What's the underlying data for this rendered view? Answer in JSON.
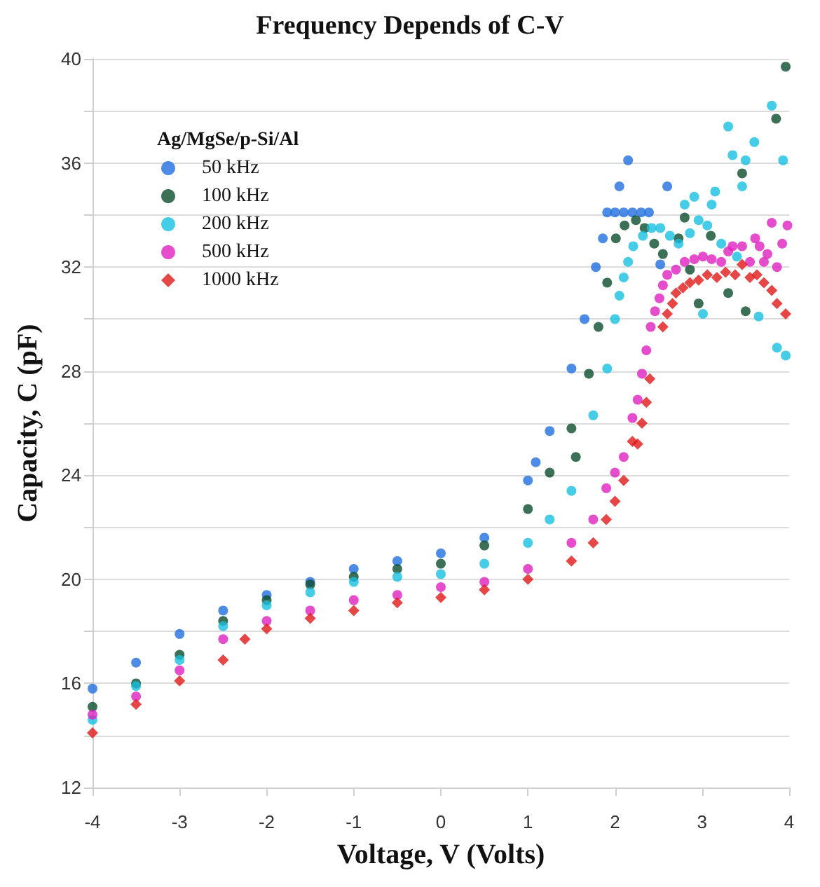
{
  "chart_data": {
    "type": "scatter",
    "title": "Frequency Depends of C-V",
    "xlabel": "Voltage, V (Volts)",
    "ylabel": "Capacity, C (pF)",
    "legend_title": "Ag/MgSe/p-Si/Al",
    "legend": "top left",
    "grid": "y",
    "marker": "circle",
    "xlim": [
      -4,
      4
    ],
    "xticks": [
      -4,
      -3,
      -2,
      -1,
      0,
      1,
      2,
      3,
      4
    ],
    "ylim": [
      12,
      40
    ],
    "yticks": [
      12,
      {
        "value": 14,
        "label": null
      },
      16,
      {
        "value": 18,
        "label": null
      },
      20,
      {
        "value": 22,
        "label": null
      },
      24,
      {
        "value": 26,
        "label": null
      },
      28,
      {
        "value": 30,
        "label": null
      },
      32,
      {
        "value": 34,
        "label": null
      },
      36,
      {
        "value": 38,
        "label": null
      },
      40
    ],
    "series": [
      {
        "name": "50 kHz",
        "color": "#1f6fe0",
        "x": [
          -4,
          -3.5,
          -3,
          -2.5,
          -2,
          -1.5,
          -1,
          -0.5,
          0,
          0.5,
          1,
          1.09,
          1.25,
          1.5,
          1.65,
          1.78,
          1.86,
          1.91,
          2.0,
          2.1,
          2.2,
          2.3,
          2.39,
          2.05,
          2.15,
          2.52,
          2.6
        ],
        "values": [
          15.8,
          16.8,
          17.9,
          18.8,
          19.4,
          19.9,
          20.4,
          20.7,
          21.0,
          21.6,
          23.8,
          24.5,
          25.7,
          28.1,
          30.0,
          32.0,
          33.1,
          34.1,
          34.1,
          34.1,
          34.1,
          34.1,
          34.1,
          35.1,
          36.1,
          32.1,
          35.1
        ]
      },
      {
        "name": "100 kHz",
        "color": "#0b4d2e",
        "x": [
          -4,
          -3.5,
          -3,
          -2.5,
          -2,
          -1.5,
          -1,
          -0.5,
          0,
          0.5,
          1,
          1.25,
          1.5,
          1.55,
          1.7,
          1.81,
          1.91,
          2.01,
          2.11,
          2.24,
          2.34,
          2.45,
          2.55,
          2.73,
          2.8,
          2.86,
          2.96,
          3.1,
          3.3,
          3.46,
          3.5,
          3.85,
          3.96
        ],
        "values": [
          15.1,
          16.0,
          17.1,
          18.4,
          19.2,
          19.8,
          20.1,
          20.4,
          20.6,
          21.3,
          22.7,
          24.1,
          25.8,
          24.7,
          27.9,
          29.7,
          31.4,
          33.1,
          33.6,
          33.8,
          33.5,
          32.9,
          32.5,
          33.1,
          33.9,
          31.9,
          30.6,
          33.2,
          31.0,
          35.6,
          30.3,
          37.7,
          39.7
        ]
      },
      {
        "name": "200 kHz",
        "color": "#17bfe0",
        "x": [
          -4,
          -3.5,
          -3,
          -2.5,
          -2,
          -1.5,
          -1,
          -0.5,
          0,
          0.5,
          1,
          1.25,
          1.5,
          1.75,
          1.91,
          2.0,
          2.05,
          2.1,
          2.15,
          2.21,
          2.32,
          2.42,
          2.52,
          2.63,
          2.73,
          2.8,
          2.86,
          2.91,
          2.96,
          3.01,
          3.06,
          3.11,
          3.15,
          3.22,
          3.3,
          3.35,
          3.4,
          3.46,
          3.5,
          3.6,
          3.65,
          3.8,
          3.86,
          3.93,
          3.96
        ],
        "values": [
          14.6,
          15.9,
          16.9,
          18.2,
          19.0,
          19.5,
          19.9,
          20.1,
          20.2,
          20.6,
          21.4,
          22.3,
          23.4,
          26.3,
          28.1,
          30.0,
          30.9,
          31.6,
          32.2,
          32.8,
          33.2,
          33.5,
          33.5,
          33.2,
          32.9,
          34.4,
          33.3,
          34.7,
          33.8,
          30.2,
          33.6,
          34.4,
          34.9,
          32.9,
          37.4,
          36.3,
          32.4,
          35.1,
          36.1,
          36.8,
          30.1,
          38.2,
          28.9,
          36.1,
          28.6
        ]
      },
      {
        "name": "500 kHz",
        "color": "#e020c0",
        "x": [
          -4,
          -3.5,
          -3,
          -2.5,
          -2,
          -1.5,
          -1,
          -0.5,
          0,
          0.5,
          1,
          1.5,
          1.75,
          1.9,
          2.0,
          2.1,
          2.2,
          2.26,
          2.31,
          2.36,
          2.41,
          2.46,
          2.51,
          2.55,
          2.6,
          2.7,
          2.8,
          2.91,
          3.01,
          3.11,
          3.22,
          3.3,
          3.35,
          3.46,
          3.55,
          3.61,
          3.66,
          3.71,
          3.75,
          3.8,
          3.86,
          3.92,
          3.98
        ],
        "values": [
          14.8,
          15.5,
          16.5,
          17.7,
          18.4,
          18.8,
          19.2,
          19.4,
          19.7,
          19.9,
          20.4,
          21.4,
          22.3,
          23.5,
          24.1,
          24.7,
          26.2,
          26.9,
          27.9,
          28.8,
          29.7,
          30.3,
          30.8,
          31.3,
          31.7,
          31.9,
          32.2,
          32.3,
          32.4,
          32.3,
          32.2,
          32.6,
          32.8,
          32.8,
          32.2,
          33.1,
          32.8,
          32.2,
          32.5,
          33.7,
          32.0,
          32.9,
          33.6
        ]
      },
      {
        "name": "1000 kHz",
        "color": "#e01818",
        "marker": "diamond",
        "x": [
          -4,
          -3.5,
          -3,
          -2.5,
          -2.25,
          -2,
          -1.5,
          -1,
          -0.5,
          0,
          0.5,
          1,
          1.5,
          1.75,
          1.9,
          2.0,
          2.1,
          2.2,
          2.26,
          2.31,
          2.36,
          2.4,
          2.55,
          2.6,
          2.66,
          2.7,
          2.78,
          2.86,
          2.96,
          3.06,
          3.17,
          3.27,
          3.38,
          3.46,
          3.55,
          3.63,
          3.71,
          3.8,
          3.86,
          3.96
        ],
        "values": [
          14.1,
          15.2,
          16.1,
          16.9,
          17.7,
          18.1,
          18.5,
          18.8,
          19.1,
          19.3,
          19.6,
          20.0,
          20.7,
          21.4,
          22.3,
          23.0,
          23.8,
          25.3,
          25.2,
          26.0,
          26.8,
          27.7,
          29.7,
          30.2,
          30.6,
          31.0,
          31.2,
          31.4,
          31.5,
          31.7,
          31.6,
          31.8,
          31.7,
          32.1,
          31.6,
          31.7,
          31.4,
          31.1,
          30.6,
          30.2
        ]
      }
    ]
  }
}
